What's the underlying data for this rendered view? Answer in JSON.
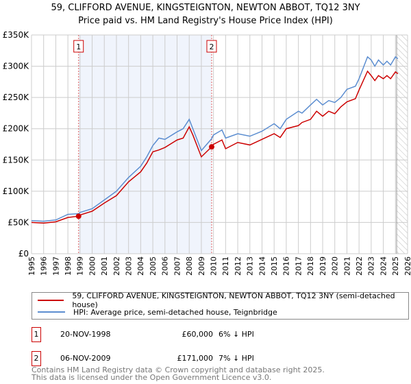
{
  "title": {
    "line1": "59, CLIFFORD AVENUE, KINGSTEIGNTON, NEWTON ABBOT, TQ12 3NY",
    "line2": "Price paid vs. HM Land Registry's House Price Index (HPI)"
  },
  "chart_data": {
    "type": "line",
    "ylim": [
      0,
      350000
    ],
    "xlim": [
      1995,
      2026
    ],
    "yticks": [
      {
        "v": 0,
        "label": "£0"
      },
      {
        "v": 50000,
        "label": "£50K"
      },
      {
        "v": 100000,
        "label": "£100K"
      },
      {
        "v": 150000,
        "label": "£150K"
      },
      {
        "v": 200000,
        "label": "£200K"
      },
      {
        "v": 250000,
        "label": "£250K"
      },
      {
        "v": 300000,
        "label": "£300K"
      },
      {
        "v": 350000,
        "label": "£350K"
      }
    ],
    "xticks": [
      "1995",
      "1996",
      "1997",
      "1998",
      "1999",
      "2000",
      "2001",
      "2002",
      "2003",
      "2004",
      "2005",
      "2006",
      "2007",
      "2008",
      "2009",
      "2010",
      "2011",
      "2012",
      "2013",
      "2014",
      "2015",
      "2016",
      "2017",
      "2018",
      "2019",
      "2020",
      "2021",
      "2022",
      "2023",
      "2024",
      "2025",
      "2026"
    ],
    "shaded_range": [
      1998.88,
      2009.85
    ],
    "future_hatch_from": 2025.1,
    "series": [
      {
        "name": "59, CLIFFORD AVENUE, KINGSTEIGNTON, NEWTON ABBOT, TQ12 3NY (semi-detached house)",
        "color": "#cc0000",
        "x": [
          1995,
          1996,
          1997,
          1998,
          1998.88,
          1999,
          2000,
          2001,
          2002,
          2003,
          2004,
          2004.5,
          2005,
          2005.5,
          2006,
          2007,
          2007.5,
          2008,
          2008.3,
          2009,
          2009.85,
          2010,
          2010.7,
          2011,
          2012,
          2013,
          2014,
          2015,
          2015.5,
          2016,
          2017,
          2017.3,
          2018,
          2018.5,
          2019,
          2019.5,
          2020,
          2020.5,
          2021,
          2021.7,
          2022,
          2022.7,
          2023,
          2023.3,
          2023.6,
          2024,
          2024.3,
          2024.6,
          2025,
          2025.2
        ],
        "y": [
          50000,
          49000,
          51000,
          58000,
          60000,
          62000,
          68000,
          81000,
          93000,
          115000,
          131000,
          145000,
          163000,
          166000,
          170000,
          182000,
          185000,
          203000,
          190000,
          155000,
          171000,
          175000,
          182000,
          168000,
          178000,
          174000,
          183000,
          192000,
          186000,
          200000,
          205000,
          210000,
          215000,
          228000,
          220000,
          228000,
          224000,
          235000,
          243000,
          248000,
          262000,
          292000,
          285000,
          277000,
          285000,
          280000,
          285000,
          280000,
          291000,
          288000
        ]
      },
      {
        "name": "HPI: Average price, semi-detached house, Teignbridge",
        "color": "#5b8dd0",
        "x": [
          1995,
          1996,
          1997,
          1998,
          1998.88,
          1999,
          2000,
          2001,
          2002,
          2003,
          2004,
          2004.5,
          2005,
          2005.5,
          2006,
          2007,
          2007.5,
          2008,
          2008.3,
          2009,
          2009.85,
          2010,
          2010.7,
          2011,
          2012,
          2013,
          2014,
          2015,
          2015.5,
          2016,
          2017,
          2017.3,
          2018,
          2018.5,
          2019,
          2019.5,
          2020,
          2020.5,
          2021,
          2021.7,
          2022,
          2022.7,
          2023,
          2023.3,
          2023.6,
          2024,
          2024.3,
          2024.6,
          2025,
          2025.2
        ],
        "y": [
          53000,
          52000,
          54000,
          63000,
          64000,
          66000,
          72000,
          86000,
          100000,
          122000,
          140000,
          155000,
          173000,
          185000,
          183000,
          195000,
          200000,
          215000,
          200000,
          165000,
          184000,
          190000,
          198000,
          185000,
          192000,
          188000,
          196000,
          208000,
          200000,
          215000,
          228000,
          225000,
          238000,
          247000,
          238000,
          245000,
          242000,
          250000,
          263000,
          268000,
          280000,
          315000,
          310000,
          300000,
          310000,
          302000,
          308000,
          302000,
          315000,
          312000
        ]
      }
    ],
    "markers": [
      {
        "label": "1",
        "x": 1998.88,
        "y": 60000
      },
      {
        "label": "2",
        "x": 2009.85,
        "y": 171000
      }
    ]
  },
  "legend": {
    "items": [
      "59, CLIFFORD AVENUE, KINGSTEIGNTON, NEWTON ABBOT, TQ12 3NY (semi-detached house)",
      "HPI: Average price, semi-detached house, Teignbridge"
    ]
  },
  "transactions": [
    {
      "num": "1",
      "date": "20-NOV-1998",
      "price": "£60,000",
      "delta": "6% ↓ HPI"
    },
    {
      "num": "2",
      "date": "06-NOV-2009",
      "price": "£171,000",
      "delta": "7% ↓ HPI"
    }
  ],
  "footer": {
    "line1": "Contains HM Land Registry data © Crown copyright and database right 2025.",
    "line2": "This data is licensed under the Open Government Licence v3.0."
  }
}
